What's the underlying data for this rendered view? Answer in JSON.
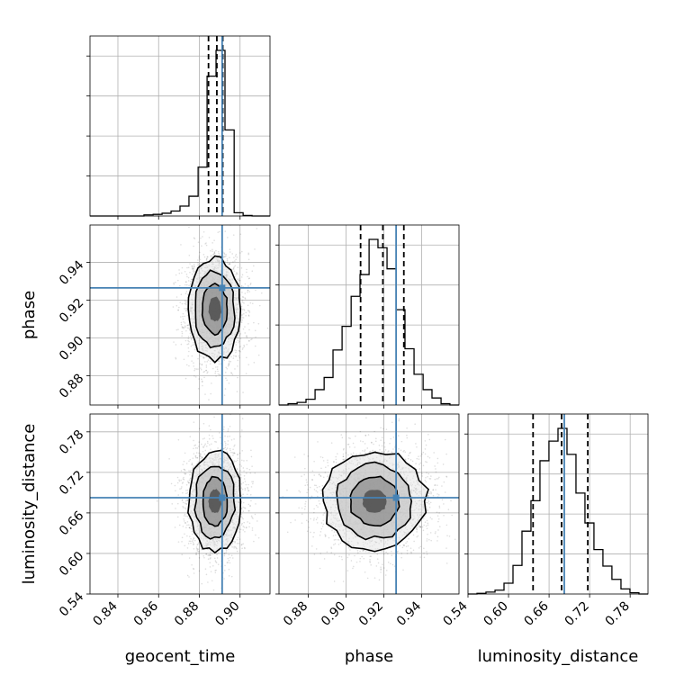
{
  "chart_data": {
    "type": "corner",
    "parameters": [
      "geocent_time",
      "phase",
      "luminosity_distance"
    ],
    "axis_labels": {
      "x": [
        "geocent_time",
        "phase",
        "luminosity_distance"
      ],
      "y": [
        "phase",
        "luminosity_distance"
      ]
    },
    "ranges": {
      "geocent_time": [
        0.8263,
        0.9147
      ],
      "phase": [
        0.8645,
        0.9598
      ],
      "luminosity_distance": [
        0.54,
        0.8064
      ]
    },
    "ticks": {
      "geocent_time": [
        "0.84",
        "0.86",
        "0.88",
        "0.90"
      ],
      "phase": [
        "0.88",
        "0.90",
        "0.92",
        "0.94"
      ],
      "luminosity_distance": [
        "0.54",
        "0.60",
        "0.66",
        "0.72",
        "0.78"
      ]
    },
    "truths": {
      "geocent_time": 0.8912,
      "phase": 0.9265,
      "luminosity_distance": 0.6825
    },
    "quantiles": {
      "geocent_time": [
        0.8845,
        0.8886,
        0.8915
      ],
      "phase": 0.9077,
      "phase_q": [
        0.9077,
        0.9195,
        0.9306
      ],
      "luminosity_distance": [
        0.6363,
        0.6786,
        0.7173
      ]
    },
    "histograms": {
      "geocent_time": {
        "edges": [
          0.8263,
          0.8307,
          0.8351,
          0.8396,
          0.844,
          0.8484,
          0.8528,
          0.8573,
          0.8617,
          0.8661,
          0.8705,
          0.8749,
          0.8794,
          0.8838,
          0.8882,
          0.8926,
          0.8971,
          0.9015,
          0.9059,
          0.9103,
          0.9147
        ],
        "counts": [
          0,
          0,
          0,
          0,
          0,
          0,
          2,
          3,
          5,
          9,
          18,
          36,
          89,
          255,
          302,
          157,
          6,
          1,
          0,
          0
        ]
      },
      "phase": {
        "edges": [
          0.8645,
          0.8693,
          0.8741,
          0.8788,
          0.8836,
          0.8884,
          0.8931,
          0.8979,
          0.9027,
          0.9074,
          0.9122,
          0.9169,
          0.9217,
          0.9265,
          0.9312,
          0.936,
          0.9408,
          0.9455,
          0.9503,
          0.955,
          0.9598
        ],
        "counts": [
          0,
          2,
          4,
          9,
          24,
          43,
          86,
          123,
          170,
          204,
          259,
          246,
          213,
          149,
          88,
          48,
          24,
          11,
          2,
          0
        ]
      },
      "luminosity_distance": {
        "edges": [
          0.54,
          0.5533,
          0.5666,
          0.58,
          0.5933,
          0.6066,
          0.6199,
          0.6332,
          0.6465,
          0.6598,
          0.6732,
          0.6865,
          0.6998,
          0.7131,
          0.7264,
          0.7397,
          0.753,
          0.7664,
          0.7797,
          0.793,
          0.8064
        ],
        "counts": [
          0,
          1,
          3,
          6,
          17,
          45,
          99,
          147,
          210,
          241,
          261,
          220,
          159,
          112,
          70,
          44,
          23,
          8,
          2,
          0
        ]
      }
    },
    "colors": {
      "truth": "#4682b4",
      "contour": "#000000",
      "grid": "#b0b0b0"
    },
    "grid": true
  }
}
